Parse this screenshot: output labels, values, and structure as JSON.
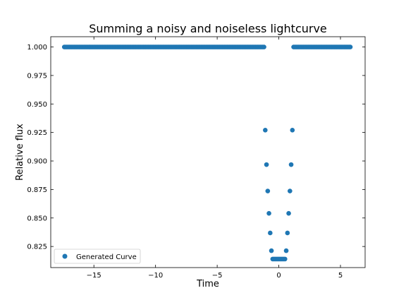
{
  "chart_data": {
    "type": "scatter",
    "title": "Summing a noisy and noiseless lightcurve",
    "xlabel": "Time",
    "ylabel": "Relative flux",
    "xlim": [
      -18.5,
      7.0
    ],
    "ylim": [
      0.8065,
      1.009
    ],
    "xticks": [
      -15,
      -10,
      -5,
      0,
      5
    ],
    "xtick_labels": [
      "−15",
      "−10",
      "−5",
      "0",
      "5"
    ],
    "yticks": [
      0.825,
      0.85,
      0.875,
      0.9,
      0.925,
      0.95,
      0.975,
      1.0
    ],
    "ytick_labels": [
      "0.825",
      "0.850",
      "0.875",
      "0.900",
      "0.925",
      "0.950",
      "0.975",
      "1.000"
    ],
    "grid": false,
    "legend_position": "lower-left",
    "series": [
      {
        "name": "Generated Curve",
        "color": "#1f77b4",
        "marker": "circle",
        "x_start": -17.4,
        "x_end": 5.8,
        "x_step": 0.1,
        "baseline_flux": 1.0,
        "transit": {
          "ingress_start": -1.2,
          "bottom_start": -0.55,
          "bottom_end": 0.55,
          "egress_end": 1.2,
          "min_flux": 0.814
        }
      }
    ]
  }
}
